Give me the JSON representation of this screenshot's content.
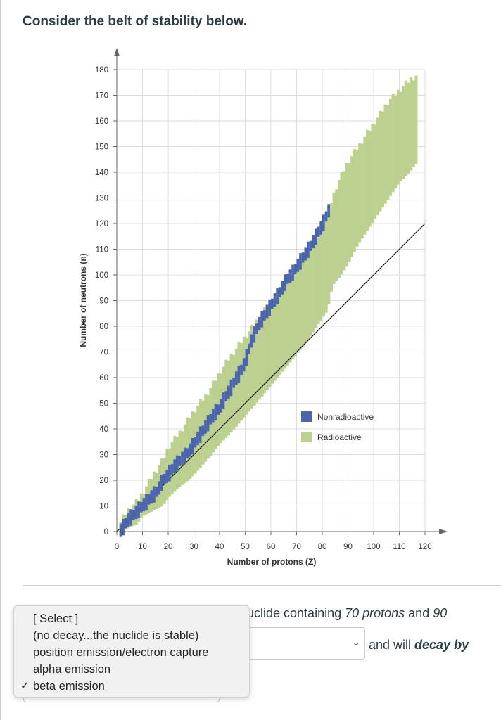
{
  "heading": "Consider the belt of stability below.",
  "question": {
    "text_prefix": "uclide containing ",
    "protons": "70 protons",
    "text_mid": " and ",
    "neutrons": "90",
    "after_select": "and will ",
    "decay_by": "decay by"
  },
  "select_chevron": "chevron-down-icon",
  "dropdown": {
    "options": [
      "[ Select ]",
      "(no decay...the nuclide is stable)",
      "position emission/electron capture",
      "alpha emission",
      "beta emission"
    ],
    "selected_index": 4,
    "check_mark": "✓"
  },
  "chart_data": {
    "type": "scatter",
    "title": "",
    "xlabel": "Number of protons (Z)",
    "ylabel": "Number of neutrons (n)",
    "xlim": [
      0,
      120
    ],
    "ylim": [
      0,
      180
    ],
    "x_ticks": [
      0,
      10,
      20,
      30,
      40,
      50,
      60,
      70,
      80,
      90,
      100,
      110,
      120
    ],
    "y_ticks": [
      0,
      10,
      20,
      30,
      40,
      50,
      60,
      70,
      80,
      90,
      100,
      110,
      120,
      130,
      140,
      150,
      160,
      170,
      180
    ],
    "grid": true,
    "legend_position": "right-middle",
    "reference_line": {
      "name": "n = Z",
      "x": [
        0,
        120
      ],
      "y": [
        0,
        120
      ]
    },
    "series": [
      {
        "name": "Nonradioactive",
        "color": "#4a64ad",
        "band": [
          [
            1,
            0
          ],
          [
            2,
            1
          ],
          [
            4,
            4
          ],
          [
            6,
            6
          ],
          [
            8,
            8
          ],
          [
            10,
            10
          ],
          [
            12,
            12
          ],
          [
            14,
            14
          ],
          [
            16,
            16
          ],
          [
            18,
            20
          ],
          [
            20,
            22
          ],
          [
            22,
            25
          ],
          [
            24,
            27
          ],
          [
            26,
            29
          ],
          [
            28,
            31
          ],
          [
            30,
            34
          ],
          [
            32,
            37
          ],
          [
            34,
            40
          ],
          [
            36,
            43
          ],
          [
            38,
            46
          ],
          [
            40,
            48
          ],
          [
            42,
            52
          ],
          [
            44,
            55
          ],
          [
            46,
            59
          ],
          [
            48,
            62
          ],
          [
            50,
            66
          ],
          [
            52,
            73
          ],
          [
            54,
            78
          ],
          [
            56,
            82
          ],
          [
            58,
            85
          ],
          [
            60,
            88
          ],
          [
            62,
            91
          ],
          [
            64,
            94
          ],
          [
            66,
            98
          ],
          [
            68,
            100
          ],
          [
            70,
            103
          ],
          [
            72,
            106
          ],
          [
            74,
            109
          ],
          [
            76,
            112
          ],
          [
            78,
            116
          ],
          [
            80,
            119
          ],
          [
            82,
            124
          ],
          [
            83,
            126
          ]
        ],
        "spread": 2
      },
      {
        "name": "Radioactive",
        "color": "#bcd08f",
        "band": [
          [
            1,
            0,
            3
          ],
          [
            4,
            1,
            8
          ],
          [
            8,
            3,
            12
          ],
          [
            10,
            6,
            15
          ],
          [
            14,
            8,
            22
          ],
          [
            18,
            10,
            28
          ],
          [
            20,
            13,
            33
          ],
          [
            24,
            17,
            38
          ],
          [
            28,
            20,
            44
          ],
          [
            30,
            22,
            47
          ],
          [
            36,
            29,
            55
          ],
          [
            40,
            34,
            62
          ],
          [
            44,
            38,
            68
          ],
          [
            50,
            45,
            76
          ],
          [
            56,
            52,
            84
          ],
          [
            60,
            57,
            90
          ],
          [
            66,
            64,
            98
          ],
          [
            70,
            69,
            104
          ],
          [
            74,
            74,
            108
          ],
          [
            78,
            80,
            114
          ],
          [
            80,
            83,
            118
          ],
          [
            82,
            86,
            124
          ],
          [
            84,
            96,
            130
          ],
          [
            86,
            98,
            136
          ],
          [
            90,
            104,
            144
          ],
          [
            94,
            112,
            150
          ],
          [
            98,
            118,
            156
          ],
          [
            102,
            124,
            162
          ],
          [
            106,
            130,
            168
          ],
          [
            110,
            136,
            172
          ],
          [
            114,
            140,
            176
          ],
          [
            117,
            144,
            178
          ]
        ]
      }
    ]
  }
}
